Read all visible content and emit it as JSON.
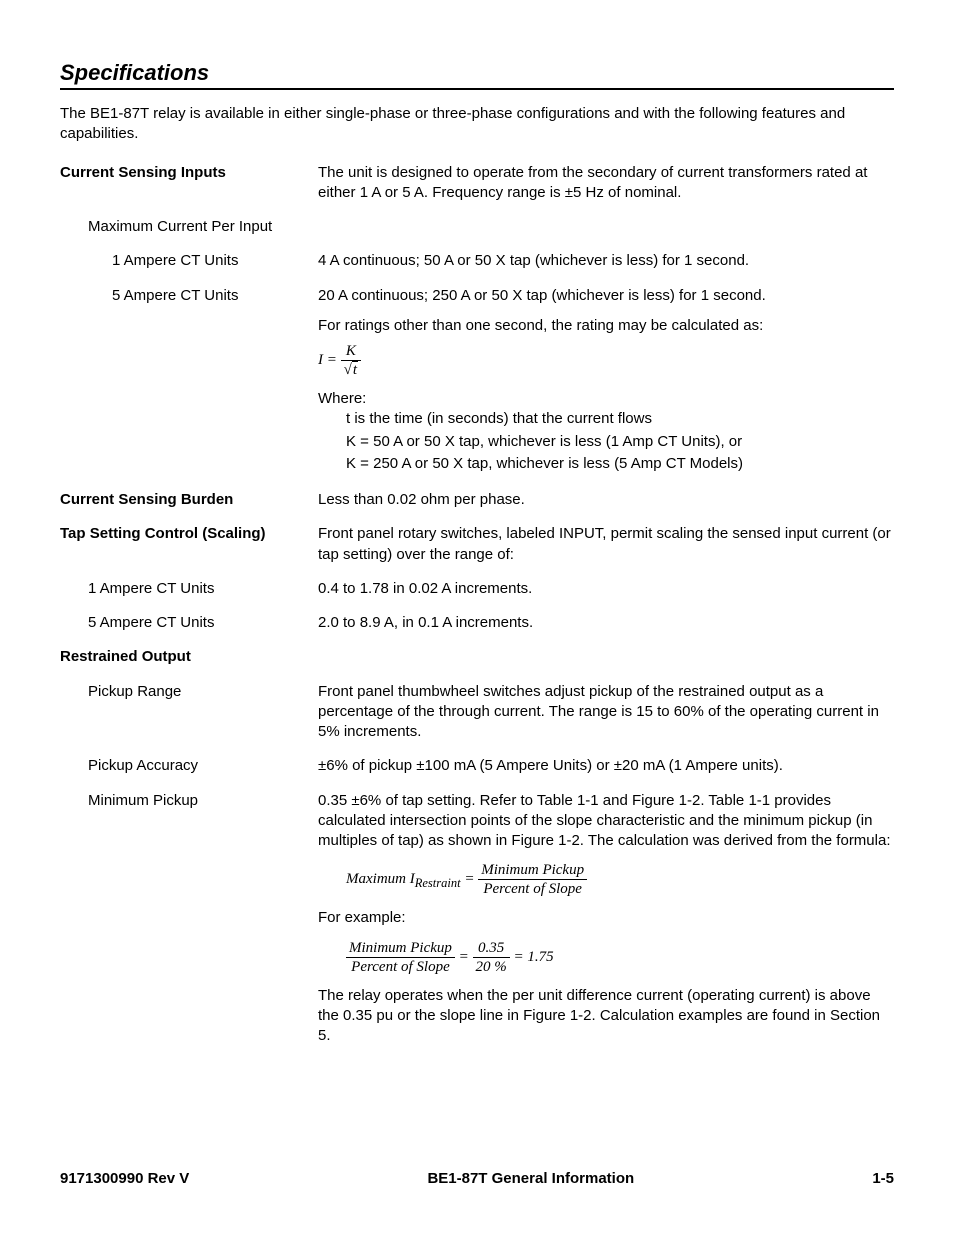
{
  "section_title": "Specifications",
  "intro": "The BE1-87T relay is available in either single-phase or three-phase configurations and with the following features and capabilities.",
  "rows": {
    "csi_label": "Current Sensing Inputs",
    "csi_text": "The unit is designed to operate from the secondary of current transformers rated at either 1 A or 5 A. Frequency range is ±5 Hz of nominal.",
    "max_current_label": "Maximum Current Per Input",
    "ct1_label": "1 Ampere CT Units",
    "ct1_text": "4 A continuous; 50 A or 50 X tap (whichever is less) for 1 second.",
    "ct5_label": "5 Ampere CT Units",
    "ct5_text": "20 A continuous; 250 A or 50 X tap (whichever is less) for 1 second.",
    "ratings_other": "For ratings other than one second, the rating may be calculated as:",
    "where_label": "Where:",
    "def_t": "t is the time (in seconds) that the current flows",
    "def_k1": "K = 50 A or 50 X tap, whichever is less (1 Amp CT Units), or",
    "def_k5": "K = 250 A or 50 X tap, whichever is less (5 Amp CT Models)",
    "csb_label": "Current Sensing Burden",
    "csb_text": "Less than 0.02 ohm per phase.",
    "tap_label": "Tap Setting Control (Scaling)",
    "tap_text": "Front panel rotary switches, labeled INPUT, permit scaling the sensed input current (or tap setting) over the range of:",
    "tap1_label": "1  Ampere CT Units",
    "tap1_text": "0.4 to 1.78 in 0.02 A increments.",
    "tap5_label": "5  Ampere CT Units",
    "tap5_text": "2.0 to 8.9 A, in 0.1 A increments.",
    "ro_label": "Restrained Output",
    "pr_label": "Pickup Range",
    "pr_text": "Front panel thumbwheel switches adjust pickup of the restrained output as a percentage of the through current. The range is 15 to 60% of the operating current in 5% increments.",
    "pa_label": "Pickup Accuracy",
    "pa_text": "±6% of pickup ±100 mA (5 Ampere Units) or ±20 mA (1 Ampere units).",
    "mp_label": "Minimum Pickup",
    "mp_text": "0.35 ±6% of tap setting. Refer to Table 1-1 and Figure 1-2. Table 1-1 provides calculated intersection points of the slope characteristic and the minimum pickup (in multiples of tap) as shown in Figure 1-2. The calculation was derived from the formula:",
    "for_example": "For example:",
    "relay_operates": "The relay operates when the per unit difference current (operating current) is above the 0.35 pu or the slope line in Figure 1-2. Calculation examples are found in Section 5."
  },
  "formulas": {
    "I_eq_left": "I",
    "I_eq_num": "K",
    "I_eq_den_radicand": "t",
    "max_ir_left": "Maximum I",
    "max_ir_sub": "Restraint",
    "mp_num": "Minimum Pickup",
    "pos_den": "Percent of Slope",
    "ex_n1": "Minimum Pickup",
    "ex_d1": "Percent of Slope",
    "ex_n2": "0.35",
    "ex_d2": "20 %",
    "ex_result": "1.75"
  },
  "footer": {
    "left": "9171300990 Rev V",
    "center": "BE1-87T General Information",
    "right": "1-5"
  }
}
